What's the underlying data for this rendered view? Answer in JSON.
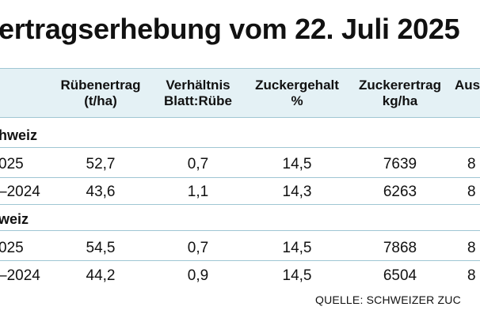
{
  "title": "ertragserhebung vom 22. Juli 2025",
  "columns": [
    {
      "line1": "Rübenertrag",
      "line2": "(t/ha)"
    },
    {
      "line1": "Verhältnis",
      "line2": "Blatt:Rübe"
    },
    {
      "line1": "Zuckergehalt",
      "line2": "%"
    },
    {
      "line1": "Zuckerertrag",
      "line2": "kg/ha"
    },
    {
      "line1": "Aus",
      "line2": ""
    }
  ],
  "sections": [
    {
      "name": "hweiz",
      "rows": [
        {
          "label": "025",
          "values": [
            "52,7",
            "0,7",
            "14,5",
            "7639",
            "8"
          ]
        },
        {
          "label": "–2024",
          "values": [
            "43,6",
            "1,1",
            "14,3",
            "6263",
            "8"
          ]
        }
      ]
    },
    {
      "name": "weiz",
      "rows": [
        {
          "label": "025",
          "values": [
            "54,5",
            "0,7",
            "14,5",
            "7868",
            "8"
          ]
        },
        {
          "label": "–2024",
          "values": [
            "44,2",
            "0,9",
            "14,5",
            "6504",
            "8"
          ]
        }
      ]
    }
  ],
  "source": "QUELLE: SCHWEIZER ZUC"
}
